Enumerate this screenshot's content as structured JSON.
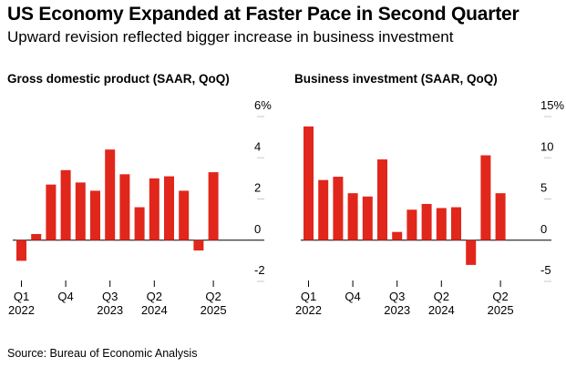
{
  "title": "US Economy Expanded at Faster Pace in Second Quarter",
  "subtitle": "Upward revision reflected bigger increase in business investment",
  "source": "Source: Bureau of Economic Analysis",
  "colors": {
    "bar": "#e1261c",
    "axis": "#000000",
    "grid": "#c8c8c8"
  },
  "chart_data": [
    {
      "type": "bar",
      "title": "Gross domestic product (SAAR, QoQ)",
      "x": [
        "Q1 2022",
        "Q2 2022",
        "Q3 2022",
        "Q4 2022",
        "Q1 2023",
        "Q2 2023",
        "Q3 2023",
        "Q4 2023",
        "Q1 2024",
        "Q2 2024",
        "Q3 2024",
        "Q4 2024",
        "Q1 2025",
        "Q2 2025"
      ],
      "values": [
        -1.0,
        0.3,
        2.7,
        3.4,
        2.8,
        2.4,
        4.4,
        3.2,
        1.6,
        3.0,
        3.1,
        2.4,
        -0.5,
        3.3
      ],
      "xticks": [
        {
          "category": "Q1 2022",
          "lines": [
            "Q1",
            "2022"
          ]
        },
        {
          "category": "Q4 2022",
          "lines": [
            "Q4",
            ""
          ]
        },
        {
          "category": "Q3 2023",
          "lines": [
            "Q3",
            "2023"
          ]
        },
        {
          "category": "Q2 2024",
          "lines": [
            "Q2",
            "2024"
          ]
        },
        {
          "category": "Q2 2025",
          "lines": [
            "Q2",
            "2025"
          ]
        }
      ],
      "yticks": [
        {
          "value": 6,
          "label": "6%"
        },
        {
          "value": 4,
          "label": "4"
        },
        {
          "value": 2,
          "label": "2"
        },
        {
          "value": 0,
          "label": "0"
        },
        {
          "value": -2,
          "label": "-2"
        }
      ],
      "ylim": [
        -2,
        6
      ],
      "grid": true
    },
    {
      "type": "bar",
      "title": "Business investment (SAAR, QoQ)",
      "x": [
        "Q1 2022",
        "Q2 2022",
        "Q3 2022",
        "Q4 2022",
        "Q1 2023",
        "Q2 2023",
        "Q3 2023",
        "Q4 2023",
        "Q1 2024",
        "Q2 2024",
        "Q3 2024",
        "Q4 2024",
        "Q1 2025",
        "Q2 2025"
      ],
      "values": [
        13.8,
        7.3,
        7.7,
        5.7,
        5.3,
        9.8,
        1.0,
        3.7,
        4.4,
        3.9,
        4.0,
        -3.0,
        10.3,
        5.7
      ],
      "xticks": [
        {
          "category": "Q1 2022",
          "lines": [
            "Q1",
            "2022"
          ]
        },
        {
          "category": "Q4 2022",
          "lines": [
            "Q4",
            ""
          ]
        },
        {
          "category": "Q3 2023",
          "lines": [
            "Q3",
            "2023"
          ]
        },
        {
          "category": "Q2 2024",
          "lines": [
            "Q2",
            "2024"
          ]
        },
        {
          "category": "Q2 2025",
          "lines": [
            "Q2",
            "2025"
          ]
        }
      ],
      "yticks": [
        {
          "value": 15,
          "label": "15%"
        },
        {
          "value": 10,
          "label": "10"
        },
        {
          "value": 5,
          "label": "5"
        },
        {
          "value": 0,
          "label": "0"
        },
        {
          "value": -5,
          "label": "-5"
        }
      ],
      "ylim": [
        -5,
        15
      ],
      "grid": true
    }
  ]
}
